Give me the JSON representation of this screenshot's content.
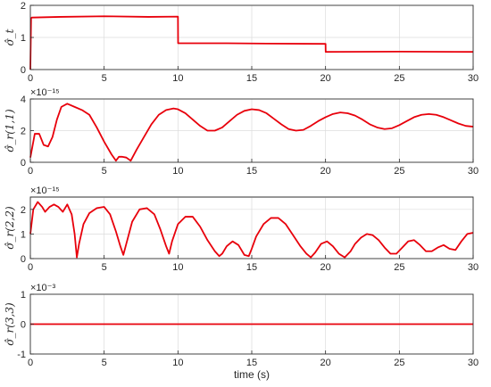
{
  "xlabel": "time (s)",
  "series_color": "#e8000b",
  "chart_data": [
    {
      "type": "line",
      "ylabel": "σ̂_t",
      "multiplier": "",
      "xlim": [
        0,
        30
      ],
      "ylim": [
        0,
        2
      ],
      "grid": true,
      "xticks": [
        0,
        5,
        10,
        15,
        20,
        25,
        30
      ],
      "yticks": [
        0,
        1,
        2
      ],
      "xtick_labels": [
        "0",
        "5",
        "10",
        "15",
        "20",
        "25",
        "30"
      ],
      "ytick_labels": [
        "0",
        "1",
        "2"
      ],
      "x": [
        0,
        0.05,
        0.1,
        2,
        5,
        8,
        9.99,
        10,
        10.01,
        13,
        16,
        19.99,
        20,
        20.01,
        25,
        30
      ],
      "y": [
        0,
        1.6,
        1.62,
        1.64,
        1.66,
        1.64,
        1.65,
        1.65,
        0.82,
        0.82,
        0.81,
        0.8,
        0.8,
        0.55,
        0.56,
        0.55
      ]
    },
    {
      "type": "line",
      "ylabel": "σ̂_r(1,1)",
      "multiplier": "×10⁻¹⁵",
      "xlim": [
        0,
        30
      ],
      "ylim": [
        0,
        4
      ],
      "grid": true,
      "xticks": [
        0,
        5,
        10,
        15,
        20,
        25,
        30
      ],
      "yticks": [
        0,
        2,
        4
      ],
      "xtick_labels": [
        "0",
        "5",
        "10",
        "15",
        "20",
        "25",
        "30"
      ],
      "ytick_labels": [
        "0",
        "2",
        "4"
      ],
      "x": [
        0,
        0.3,
        0.6,
        0.9,
        1.2,
        1.5,
        1.8,
        2.1,
        2.5,
        3.0,
        3.5,
        4.0,
        4.5,
        5.0,
        5.5,
        5.8,
        6.0,
        6.2,
        6.5,
        6.8,
        7.2,
        7.7,
        8.2,
        8.7,
        9.2,
        9.7,
        10.0,
        10.5,
        11.0,
        11.5,
        12.0,
        12.5,
        13.0,
        13.5,
        14.0,
        14.5,
        15.0,
        15.5,
        16.0,
        16.5,
        17.0,
        17.5,
        18.0,
        18.5,
        19.0,
        19.5,
        20.0,
        20.5,
        21.0,
        21.5,
        22.0,
        22.5,
        23.0,
        23.5,
        24.0,
        24.5,
        25.0,
        25.5,
        26.0,
        26.5,
        27.0,
        27.5,
        28.0,
        28.5,
        29.0,
        29.5,
        30.0
      ],
      "y": [
        0.3,
        1.8,
        1.8,
        1.1,
        1.0,
        1.6,
        2.7,
        3.5,
        3.7,
        3.5,
        3.3,
        3.0,
        2.2,
        1.3,
        0.5,
        0.1,
        0.35,
        0.35,
        0.3,
        0.1,
        0.8,
        1.6,
        2.4,
        3.0,
        3.3,
        3.4,
        3.35,
        3.1,
        2.7,
        2.3,
        2.0,
        2.0,
        2.2,
        2.6,
        3.0,
        3.25,
        3.35,
        3.3,
        3.1,
        2.75,
        2.4,
        2.1,
        2.0,
        2.05,
        2.3,
        2.6,
        2.85,
        3.05,
        3.15,
        3.1,
        2.95,
        2.7,
        2.4,
        2.2,
        2.1,
        2.15,
        2.35,
        2.6,
        2.85,
        3.0,
        3.05,
        3.0,
        2.85,
        2.65,
        2.45,
        2.3,
        2.25
      ]
    },
    {
      "type": "line",
      "ylabel": "σ̂_r(2,2)",
      "multiplier": "×10⁻¹⁵",
      "xlim": [
        0,
        30
      ],
      "ylim": [
        0,
        2.5
      ],
      "grid": true,
      "xticks": [
        0,
        5,
        10,
        15,
        20,
        25,
        30
      ],
      "yticks": [
        0,
        1,
        2
      ],
      "xtick_labels": [
        "0",
        "5",
        "10",
        "15",
        "20",
        "25",
        "30"
      ],
      "ytick_labels": [
        "0",
        "1",
        "2"
      ],
      "x": [
        0,
        0.2,
        0.5,
        0.8,
        1.0,
        1.3,
        1.6,
        1.9,
        2.2,
        2.5,
        2.8,
        3.0,
        3.15,
        3.3,
        3.6,
        4.0,
        4.5,
        5.0,
        5.4,
        5.8,
        6.1,
        6.3,
        6.5,
        6.9,
        7.4,
        7.9,
        8.4,
        8.8,
        9.2,
        9.4,
        9.6,
        10.0,
        10.5,
        11.0,
        11.5,
        12.0,
        12.5,
        12.8,
        13.0,
        13.3,
        13.7,
        14.1,
        14.5,
        14.8,
        15.0,
        15.3,
        15.8,
        16.3,
        16.8,
        17.3,
        17.8,
        18.3,
        18.7,
        19.0,
        19.3,
        19.7,
        20.1,
        20.5,
        20.9,
        21.3,
        21.7,
        22.0,
        22.4,
        22.8,
        23.2,
        23.6,
        24.0,
        24.4,
        24.8,
        25.2,
        25.6,
        26.0,
        26.4,
        26.8,
        27.2,
        27.6,
        28.0,
        28.4,
        28.8,
        29.2,
        29.6,
        30.0
      ],
      "y": [
        1.0,
        2.0,
        2.3,
        2.1,
        1.9,
        2.1,
        2.2,
        2.1,
        1.9,
        2.2,
        1.8,
        1.0,
        0.05,
        0.6,
        1.4,
        1.85,
        2.05,
        2.1,
        1.8,
        1.1,
        0.5,
        0.15,
        0.6,
        1.5,
        2.0,
        2.05,
        1.8,
        1.2,
        0.5,
        0.2,
        0.7,
        1.4,
        1.7,
        1.7,
        1.3,
        0.75,
        0.3,
        0.1,
        0.2,
        0.5,
        0.7,
        0.55,
        0.15,
        0.1,
        0.4,
        0.9,
        1.4,
        1.65,
        1.65,
        1.4,
        0.95,
        0.5,
        0.2,
        0.05,
        0.25,
        0.6,
        0.7,
        0.5,
        0.2,
        0.05,
        0.3,
        0.6,
        0.85,
        1.0,
        0.95,
        0.75,
        0.45,
        0.2,
        0.2,
        0.45,
        0.7,
        0.75,
        0.55,
        0.3,
        0.3,
        0.45,
        0.55,
        0.4,
        0.35,
        0.7,
        1.0,
        1.05
      ]
    },
    {
      "type": "line",
      "ylabel": "σ̂_r(3,3)",
      "multiplier": "×10⁻³",
      "xlim": [
        0,
        30
      ],
      "ylim": [
        -1,
        1
      ],
      "grid": true,
      "xticks": [
        0,
        5,
        10,
        15,
        20,
        25,
        30
      ],
      "yticks": [
        -1,
        0,
        1
      ],
      "xtick_labels": [
        "0",
        "5",
        "10",
        "15",
        "20",
        "25",
        "30"
      ],
      "ytick_labels": [
        "-1",
        "0",
        "1"
      ],
      "x": [
        0,
        30
      ],
      "y": [
        0,
        0
      ]
    }
  ]
}
